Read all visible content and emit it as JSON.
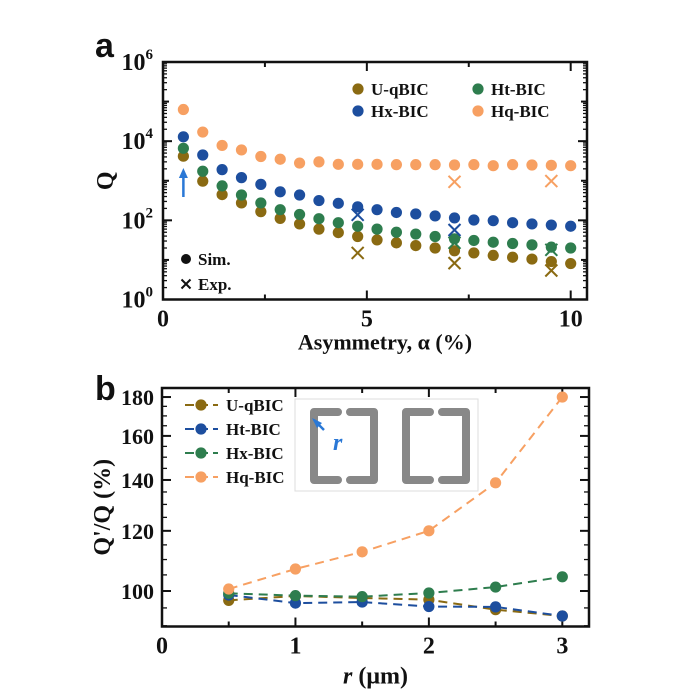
{
  "colors": {
    "U-qBIC": "#8a6a12",
    "Ht-BIC": "#2e7d4e",
    "Hx-BIC": "#1d4e9e",
    "Hq-BIC": "#f7a062",
    "arrow": "#2a78d6",
    "inset": "#888888"
  },
  "chart_data": [
    {
      "panel_label": "a",
      "type": "scatter",
      "xlabel": "Asymmetry, α (%)",
      "ylabel": "Q",
      "xscale": "linear",
      "yscale": "log",
      "xlim": [
        0,
        10.4
      ],
      "ylim": [
        1,
        1000000
      ],
      "xticks": [
        "0",
        "5",
        "10"
      ],
      "xtick_values": [
        0,
        5,
        10
      ],
      "yticks": [
        "10^0",
        "10^2",
        "10^4",
        "10^6"
      ],
      "ytick_values": [
        1,
        100,
        10000,
        1000000
      ],
      "legend": {
        "position": "top-right",
        "entries": [
          "U-qBIC",
          "Ht-BIC",
          "Hx-BIC",
          "Hq-BIC"
        ]
      },
      "marker_legend": {
        "position": "bottom-left",
        "sim": "Sim.",
        "exp": "Exp."
      },
      "annotation": "blue arrow pointing up at α = 0.5",
      "x": [
        0.5,
        0.975,
        1.45,
        1.925,
        2.4,
        2.875,
        3.35,
        3.825,
        4.3,
        4.775,
        5.25,
        5.725,
        6.2,
        6.675,
        7.15,
        7.625,
        8.1,
        8.575,
        9.05,
        9.525,
        10.0
      ],
      "series": [
        {
          "name": "U-qBIC",
          "marker": "circle",
          "values": [
            4170,
            977,
            447,
            275,
            166,
            112,
            81,
            60,
            49,
            39,
            32,
            27,
            23,
            20,
            17,
            15,
            13,
            11.7,
            10.5,
            9.1,
            8.1
          ]
        },
        {
          "name": "Ht-BIC",
          "marker": "circle",
          "values": [
            6600,
            1740,
            741,
            436,
            275,
            186,
            141,
            110,
            87,
            71,
            60,
            50,
            45,
            39,
            34,
            31,
            28,
            26,
            24,
            21,
            20
          ]
        },
        {
          "name": "Hx-BIC",
          "marker": "circle",
          "values": [
            12900,
            4470,
            1910,
            1200,
            810,
            525,
            436,
            316,
            269,
            219,
            186,
            158,
            145,
            129,
            115,
            102,
            98,
            87,
            81,
            76,
            71
          ]
        },
        {
          "name": "Hq-BIC",
          "marker": "circle",
          "values": [
            63000,
            17000,
            7800,
            6000,
            4100,
            3500,
            2800,
            3000,
            2600,
            2600,
            2600,
            2550,
            2550,
            2550,
            2500,
            2550,
            2400,
            2550,
            2500,
            2450,
            2400
          ]
        }
      ],
      "experiment": [
        {
          "name": "U-qBIC",
          "x": [
            4.775,
            7.15,
            9.525
          ],
          "values": [
            15,
            8.3,
            5.4
          ]
        },
        {
          "name": "Ht-BIC",
          "x": [
            7.15,
            9.525
          ],
          "values": [
            27,
            18
          ]
        },
        {
          "name": "Hx-BIC",
          "x": [
            4.775,
            7.15
          ],
          "values": [
            138,
            57
          ]
        },
        {
          "name": "Hq-BIC",
          "x": [
            7.15,
            9.525
          ],
          "values": [
            940,
            980
          ]
        }
      ]
    },
    {
      "panel_label": "b",
      "type": "line",
      "xlabel_italic": "r",
      "xlabel_rest": " (μm)",
      "ylabel": "Q'/Q (%)",
      "xscale": "linear",
      "yscale": "log",
      "xlim": [
        0,
        3.2
      ],
      "ylim": [
        89.8,
        185
      ],
      "xticks": [
        "0",
        "1",
        "2",
        "3"
      ],
      "xtick_values": [
        0,
        1,
        2,
        3
      ],
      "yticks": [
        "100",
        "120",
        "140",
        "160",
        "180"
      ],
      "ytick_values": [
        100,
        120,
        140,
        160,
        180
      ],
      "legend": {
        "position": "top-left",
        "entries": [
          "U-qBIC",
          "Ht-BIC",
          "Hx-BIC",
          "Hq-BIC"
        ]
      },
      "inset_label": "r",
      "x": [
        0.5,
        1.0,
        1.5,
        2.0,
        2.5,
        3.0
      ],
      "series": [
        {
          "name": "U-qBIC",
          "color_key": "U-qBIC",
          "values": [
            97.2,
            98.5,
            97.9,
            97.4,
            94.5,
            92.7
          ]
        },
        {
          "name": "Ht-BIC",
          "color_key": "Hx-BIC",
          "values": [
            98.8,
            96.4,
            96.7,
            95.4,
            95.3,
            92.7
          ]
        },
        {
          "name": "Hx-BIC",
          "color_key": "Ht-BIC",
          "values": [
            99.3,
            98.6,
            98.3,
            99.4,
            101.2,
            104.4
          ]
        },
        {
          "name": "Hq-BIC",
          "color_key": "Hq-BIC",
          "values": [
            100.6,
            106.9,
            112.6,
            120,
            138.8,
            180
          ]
        }
      ]
    }
  ]
}
